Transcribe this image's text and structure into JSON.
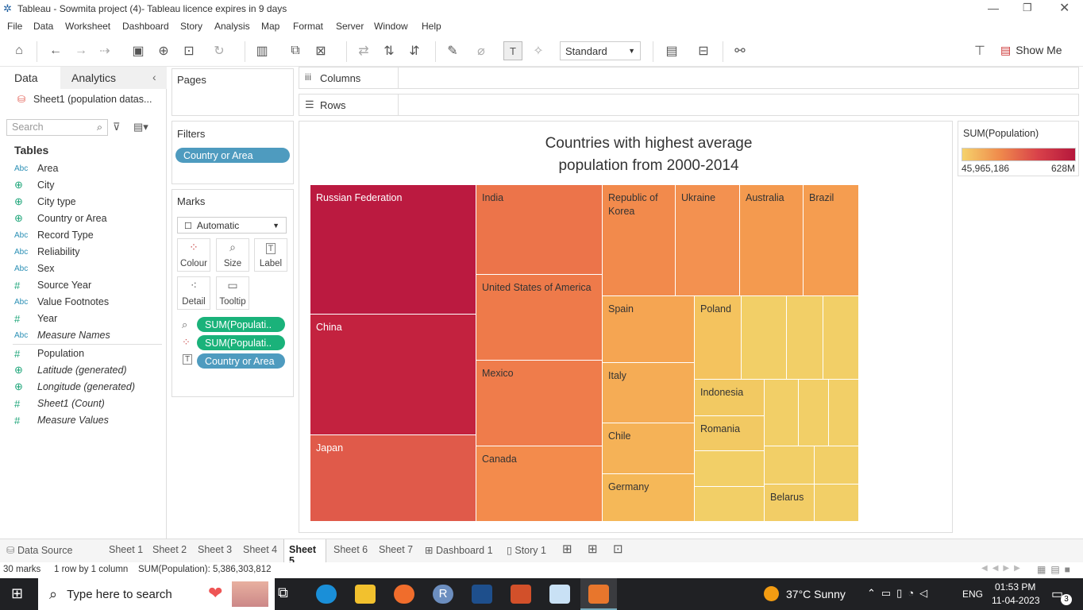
{
  "window": {
    "title": "Tableau - Sowmita project (4)- Tableau licence expires in 9 days"
  },
  "menu": [
    "File",
    "Data",
    "Worksheet",
    "Dashboard",
    "Story",
    "Analysis",
    "Map",
    "Format",
    "Server",
    "Window",
    "Help"
  ],
  "toolbar": {
    "fit_select": "Standard",
    "show_me": "Show Me"
  },
  "data_pane": {
    "tab_data": "Data",
    "tab_analytics": "Analytics",
    "datasource": "Sheet1 (population datas...",
    "search_placeholder": "Search",
    "tables_heading": "Tables",
    "fields": [
      {
        "type": "Abc",
        "name": "Area",
        "italic": false
      },
      {
        "type": "geo",
        "name": "City",
        "italic": false
      },
      {
        "type": "geo",
        "name": "City type",
        "italic": false
      },
      {
        "type": "geo",
        "name": "Country or Area",
        "italic": false
      },
      {
        "type": "Abc",
        "name": "Record Type",
        "italic": false
      },
      {
        "type": "Abc",
        "name": "Reliability",
        "italic": false
      },
      {
        "type": "Abc",
        "name": "Sex",
        "italic": false
      },
      {
        "type": "#",
        "name": "Source Year",
        "italic": false
      },
      {
        "type": "Abc",
        "name": "Value Footnotes",
        "italic": false
      },
      {
        "type": "#",
        "name": "Year",
        "italic": false
      },
      {
        "type": "Abc",
        "name": "Measure Names",
        "italic": true
      },
      {
        "type": "#",
        "name": "Population",
        "italic": false
      },
      {
        "type": "geo",
        "name": "Latitude (generated)",
        "italic": true
      },
      {
        "type": "geo",
        "name": "Longitude (generated)",
        "italic": true
      },
      {
        "type": "#",
        "name": "Sheet1 (Count)",
        "italic": true
      },
      {
        "type": "#",
        "name": "Measure Values",
        "italic": true
      }
    ]
  },
  "pages": {
    "label": "Pages"
  },
  "filters": {
    "label": "Filters",
    "pill": "Country or Area"
  },
  "marks": {
    "label": "Marks",
    "type": "Automatic",
    "buttons": [
      "Colour",
      "Size",
      "Label",
      "Detail",
      "Tooltip"
    ],
    "pills": [
      "SUM(Populati..",
      "SUM(Populati..",
      "Country or Area"
    ]
  },
  "shelves": {
    "columns": "Columns",
    "rows": "Rows"
  },
  "viz": {
    "title_line1": "Countries with highest average",
    "title_line2": "population from 2000-2014"
  },
  "legend": {
    "title": "SUM(Population)",
    "min": "45,965,186",
    "max": "628M",
    "color_low": "#f5d26b",
    "color_high": "#b5173c"
  },
  "chart_data": {
    "type": "treemap",
    "title": "Countries with highest average population from 2000-2014",
    "color_measure": "SUM(Population)",
    "color_range": [
      "45,965,186",
      "628M"
    ],
    "labeled_items": [
      {
        "name": "Russian Federation",
        "color": "#bb1a40"
      },
      {
        "name": "China",
        "color": "#c3223f"
      },
      {
        "name": "Japan",
        "color": "#e05a4a"
      },
      {
        "name": "India",
        "color": "#ec744a"
      },
      {
        "name": "United States of America",
        "color": "#ee7a4a"
      },
      {
        "name": "Mexico",
        "color": "#ef7c4b"
      },
      {
        "name": "Canada",
        "color": "#f38b4c"
      },
      {
        "name": "Republic of Korea",
        "color": "#f28a4c"
      },
      {
        "name": "Ukraine",
        "color": "#f39150"
      },
      {
        "name": "Australia",
        "color": "#f49a4f"
      },
      {
        "name": "Brazil",
        "color": "#f59d50"
      },
      {
        "name": "Spain",
        "color": "#f5a552"
      },
      {
        "name": "Italy",
        "color": "#f5ac55"
      },
      {
        "name": "Chile",
        "color": "#f5b257"
      },
      {
        "name": "Germany",
        "color": "#f5b858"
      },
      {
        "name": "Poland",
        "color": "#f4c35e"
      },
      {
        "name": "Indonesia",
        "color": "#f2c962"
      },
      {
        "name": "Romania",
        "color": "#f2c963"
      },
      {
        "name": "Belarus",
        "color": "#f2cd66"
      }
    ],
    "unlabeled_color": "#f2cf67"
  },
  "tabs": {
    "datasource": "Data Source",
    "sheets": [
      "Sheet 1",
      "Sheet 2",
      "Sheet 3",
      "Sheet 4",
      "Sheet 5",
      "Sheet 6",
      "Sheet 7"
    ],
    "active": "Sheet 5",
    "dashboard": "Dashboard 1",
    "story": "Story 1"
  },
  "status": {
    "marks": "30 marks",
    "dims": "1 row by 1 column",
    "sum": "SUM(Population): 5,386,303,812"
  },
  "taskbar": {
    "search": "Type here to search",
    "weather": "37°C  Sunny",
    "lang": "ENG",
    "time": "01:53 PM",
    "date": "11-04-2023",
    "notif": "3"
  }
}
